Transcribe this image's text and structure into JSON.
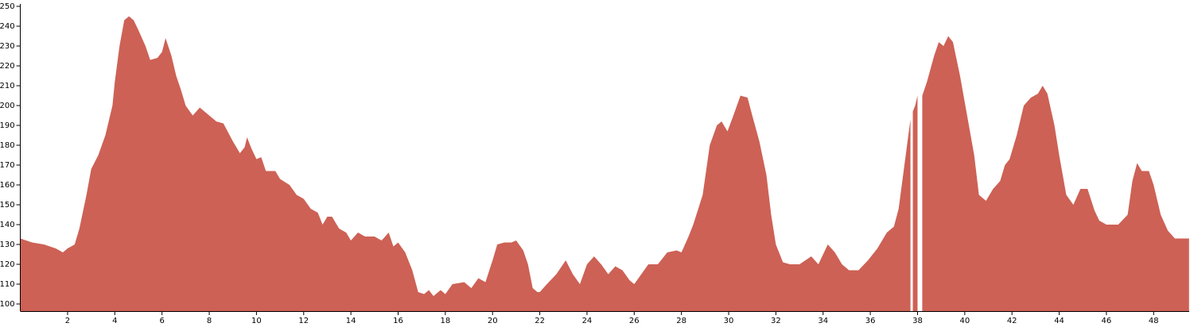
{
  "chart_data": {
    "type": "area",
    "color": "#cd6155",
    "x": [
      0,
      0.5,
      1,
      1.5,
      1.8,
      2,
      2.3,
      2.5,
      2.8,
      3,
      3.3,
      3.6,
      3.9,
      4.0,
      4.2,
      4.4,
      4.6,
      4.8,
      5.0,
      5.3,
      5.5,
      5.8,
      6.0,
      6.15,
      6.4,
      6.6,
      6.8,
      7.0,
      7.3,
      7.6,
      8.0,
      8.3,
      8.6,
      9.0,
      9.3,
      9.5,
      9.6,
      9.8,
      10.0,
      10.2,
      10.4,
      10.8,
      11.0,
      11.4,
      11.7,
      12.0,
      12.3,
      12.6,
      12.8,
      13.0,
      13.2,
      13.5,
      13.8,
      14.0,
      14.3,
      14.6,
      15.0,
      15.3,
      15.6,
      15.8,
      16.0,
      16.3,
      16.6,
      16.85,
      17.1,
      17.3,
      17.5,
      17.8,
      18.0,
      18.3,
      18.8,
      19.1,
      19.4,
      19.7,
      20.0,
      20.2,
      20.5,
      20.8,
      21.0,
      21.3,
      21.5,
      21.7,
      21.9,
      22.0,
      22.3,
      22.7,
      23.1,
      23.4,
      23.7,
      24.0,
      24.3,
      24.6,
      24.9,
      25.2,
      25.5,
      25.8,
      26.0,
      26.3,
      26.6,
      27.0,
      27.4,
      27.8,
      28.0,
      28.3,
      28.5,
      28.9,
      29.2,
      29.5,
      29.7,
      29.95,
      30.2,
      30.5,
      30.8,
      31.0,
      31.3,
      31.6,
      31.8,
      32.0,
      32.3,
      32.6,
      33.0,
      33.5,
      33.8,
      34.2,
      34.5,
      34.8,
      35.1,
      35.5,
      35.9,
      36.3,
      36.7,
      37.0,
      37.2,
      37.5,
      37.7,
      37.75,
      37.8,
      37.9,
      38.0,
      38.13,
      38.2,
      38.4,
      38.7,
      38.9,
      39.1,
      39.3,
      39.5,
      39.8,
      40.1,
      40.4,
      40.6,
      40.9,
      41.2,
      41.5,
      41.7,
      41.9,
      42.2,
      42.5,
      42.8,
      43.1,
      43.3,
      43.5,
      43.8,
      44.0,
      44.3,
      44.6,
      44.9,
      45.2,
      45.5,
      45.7,
      46.0,
      46.5,
      46.9,
      47.1,
      47.3,
      47.5,
      47.8,
      48.0,
      48.3,
      48.6,
      48.9,
      49.2,
      49.5
    ],
    "values": [
      133,
      131,
      130,
      128,
      126,
      128,
      130,
      138,
      155,
      168,
      175,
      185,
      200,
      212,
      230,
      243,
      245,
      243,
      238,
      230,
      223,
      224,
      227,
      234,
      225,
      215,
      208,
      200,
      195,
      199,
      195,
      192,
      191,
      182,
      176,
      179,
      184,
      178,
      173,
      174,
      167,
      167,
      163,
      160,
      155,
      153,
      148,
      146,
      140,
      144,
      144,
      138,
      136,
      132,
      136,
      134,
      134,
      132,
      136,
      129,
      131,
      126,
      117,
      106,
      105,
      107,
      104,
      107,
      105,
      110,
      111,
      108,
      113,
      111,
      122,
      130,
      131,
      131,
      132,
      127,
      120,
      108,
      106,
      106,
      110,
      115,
      122,
      115,
      110,
      120,
      124,
      120,
      115,
      119,
      117,
      112,
      110,
      115,
      120,
      120,
      126,
      127,
      126,
      134,
      140,
      155,
      180,
      190,
      192,
      187,
      195,
      205,
      204,
      195,
      182,
      165,
      145,
      130,
      121,
      120,
      120,
      124,
      120,
      130,
      126,
      120,
      117,
      117,
      122,
      128,
      136,
      139,
      148,
      175,
      193,
      null,
      197,
      200,
      205,
      null,
      205,
      212,
      225,
      232,
      230,
      235,
      232,
      215,
      195,
      175,
      155,
      152,
      158,
      162,
      170,
      173,
      185,
      200,
      204,
      206,
      210,
      206,
      190,
      175,
      155,
      150,
      158,
      158,
      147,
      142,
      140,
      140,
      145,
      162,
      171,
      167,
      167,
      160,
      145,
      137,
      133,
      133,
      133
    ],
    "xlim": [
      0,
      49.5
    ],
    "xticks": [
      2,
      4,
      6,
      8,
      10,
      12,
      14,
      16,
      18,
      20,
      22,
      24,
      26,
      28,
      30,
      32,
      34,
      36,
      38,
      40,
      42,
      44,
      46,
      48
    ],
    "ylim": [
      96.4,
      250
    ],
    "yticks": [
      100,
      110,
      120,
      130,
      140,
      150,
      160,
      170,
      180,
      190,
      200,
      210,
      220,
      230,
      240,
      250
    ]
  }
}
